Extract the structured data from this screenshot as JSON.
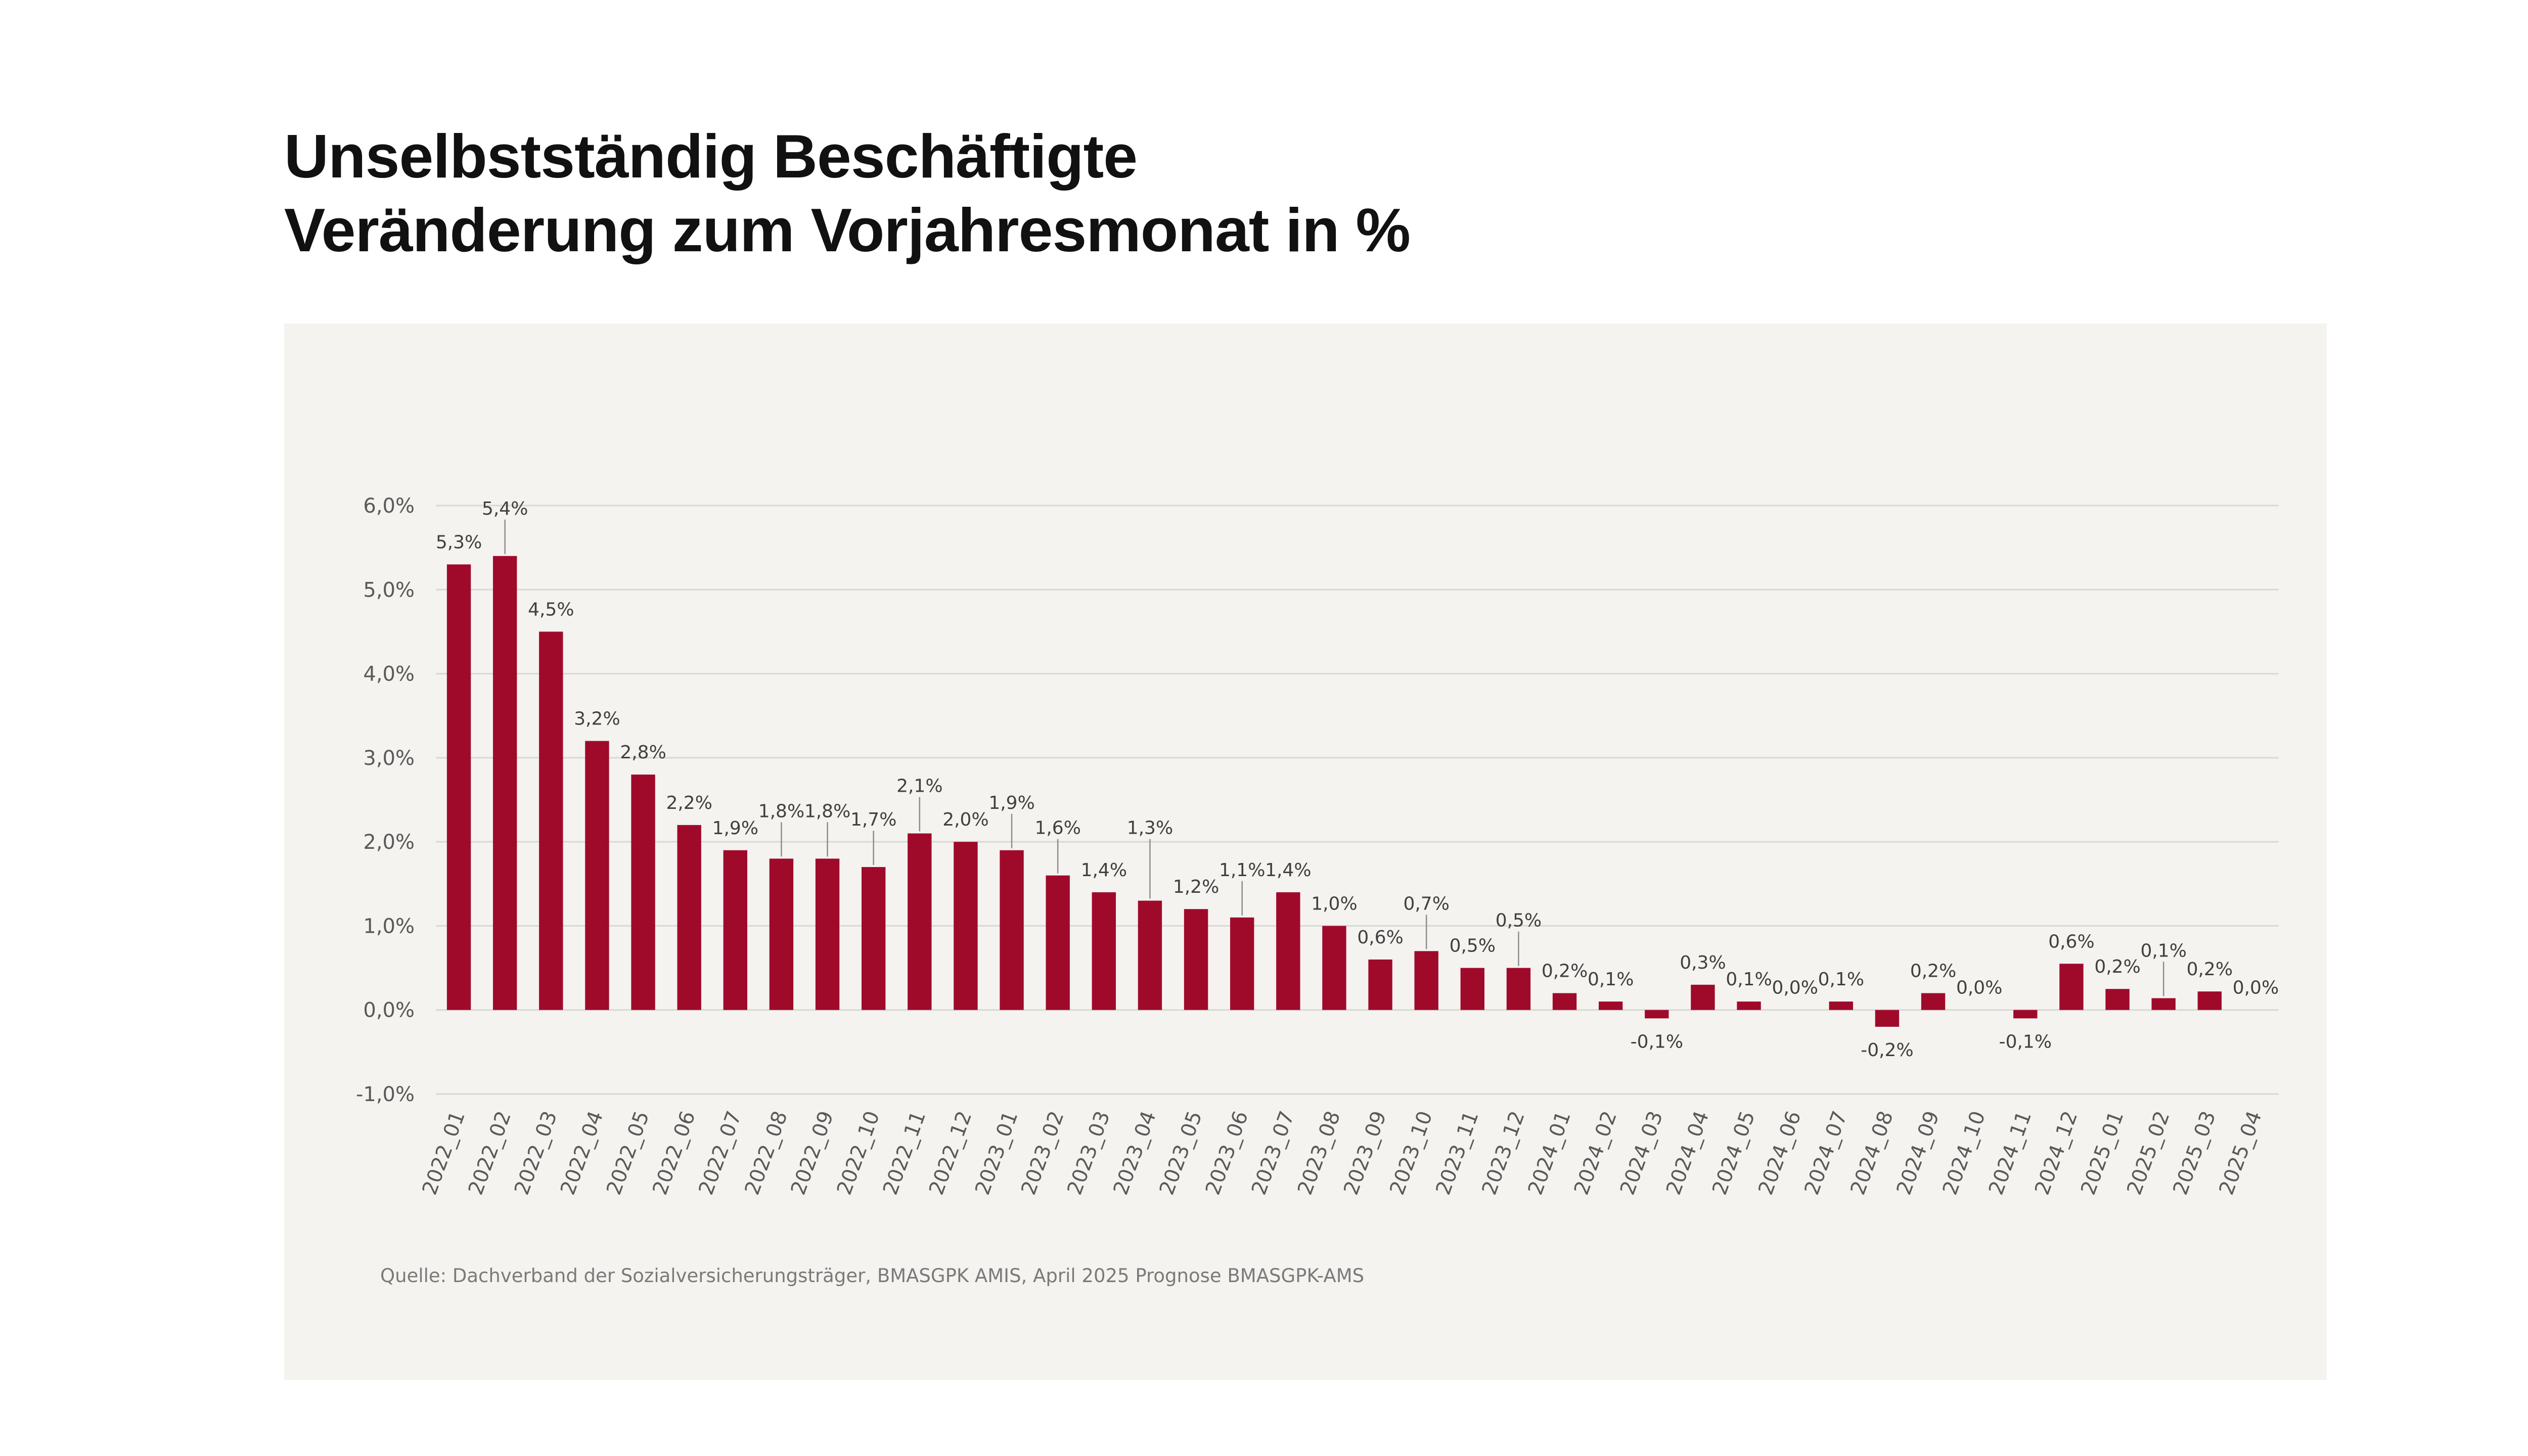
{
  "title": {
    "line1": "Unselbstständig Beschäftigte",
    "line2": "Veränderung zum Vorjahresmonat in %"
  },
  "source": "Quelle: Dachverband der Sozialversicherungsträger, BMASGPK AMIS, April 2025 Prognose BMASGPK-AMS",
  "colors": {
    "bar": "#a00a2a",
    "grid": "#d9d8d4",
    "axis_text": "#595959",
    "label_text": "#404040",
    "panel": "#f4f3f0"
  },
  "chart_data": {
    "type": "bar",
    "title": "Unselbstständig Beschäftigte – Veränderung zum Vorjahresmonat in %",
    "xlabel": "",
    "ylabel": "",
    "ylim": [
      -1.0,
      6.0
    ],
    "yticks": [
      -1.0,
      0.0,
      1.0,
      2.0,
      3.0,
      4.0,
      5.0,
      6.0
    ],
    "ytick_labels": [
      "-1,0%",
      "0,0%",
      "1,0%",
      "2,0%",
      "3,0%",
      "4,0%",
      "5,0%",
      "6,0%"
    ],
    "grid": true,
    "categories": [
      "2022_01",
      "2022_02",
      "2022_03",
      "2022_04",
      "2022_05",
      "2022_06",
      "2022_07",
      "2022_08",
      "2022_09",
      "2022_10",
      "2022_11",
      "2022_12",
      "2023_01",
      "2023_02",
      "2023_03",
      "2023_04",
      "2023_05",
      "2023_06",
      "2023_07",
      "2023_08",
      "2023_09",
      "2023_10",
      "2023_11",
      "2023_12",
      "2024_01",
      "2024_02",
      "2024_03",
      "2024_04",
      "2024_05",
      "2024_06",
      "2024_07",
      "2024_08",
      "2024_09",
      "2024_10",
      "2024_11",
      "2024_12",
      "2025_01",
      "2025_02",
      "2025_03",
      "2025_04"
    ],
    "values": [
      5.3,
      5.4,
      4.5,
      3.2,
      2.8,
      2.2,
      1.9,
      1.8,
      1.8,
      1.7,
      2.1,
      2.0,
      1.9,
      1.6,
      1.4,
      1.3,
      1.2,
      1.1,
      1.4,
      1.0,
      0.6,
      0.7,
      0.5,
      0.5,
      0.2,
      0.1,
      -0.1,
      0.3,
      0.1,
      0.0,
      0.1,
      -0.2,
      0.2,
      0.0,
      -0.1,
      0.55,
      0.25,
      0.14,
      0.22,
      0.0
    ],
    "data_labels": [
      "5,3%",
      "5,4%",
      "4,5%",
      "3,2%",
      "2,8%",
      "2,2%",
      "1,9%",
      "1,8%",
      "1,8%",
      "1,7%",
      "2,1%",
      "2,0%",
      "1,9%",
      "1,6%",
      "1,4%",
      "1,3%",
      "1,2%",
      "1,1%",
      "1,4%",
      "1,0%",
      "0,6%",
      "0,7%",
      "0,5%",
      "0,5%",
      "0,2%",
      "0,1%",
      "-0,1%",
      "0,3%",
      "0,1%",
      "0,0%",
      "0,1%",
      "-0,2%",
      "0,2%",
      "0,0%",
      "-0,1%",
      "0,6%",
      "0,2%",
      "0,1%",
      "0,2%",
      "0,0%"
    ],
    "label_offsets": [
      0,
      1,
      0,
      0,
      0,
      0,
      0,
      1,
      1,
      1,
      1,
      0,
      1,
      1,
      0,
      2,
      0,
      1,
      0,
      0,
      0,
      1,
      0,
      1,
      0,
      0,
      0,
      0,
      0,
      0,
      0,
      0,
      0,
      0,
      0,
      0,
      0,
      1,
      0,
      0
    ]
  }
}
